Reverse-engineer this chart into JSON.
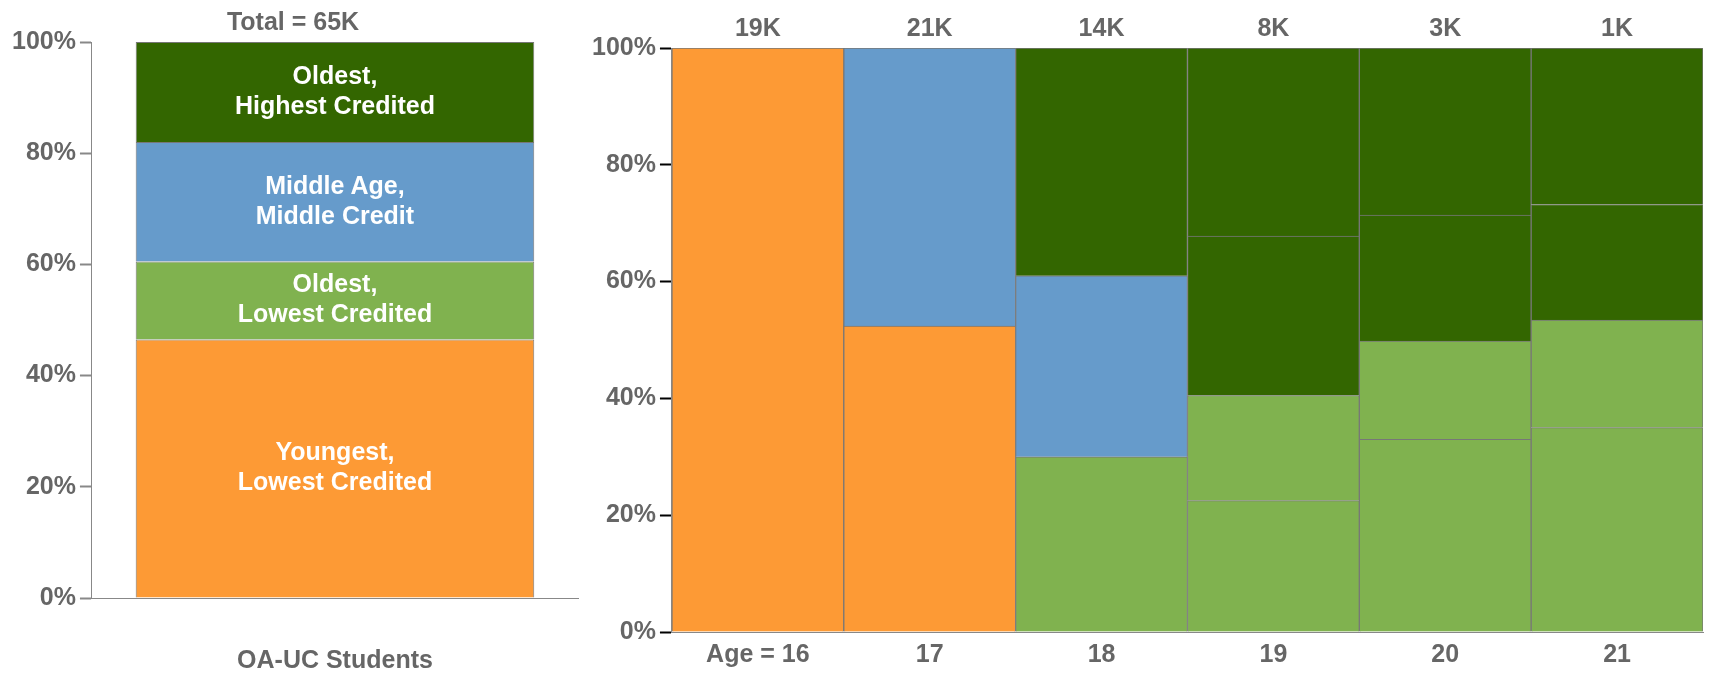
{
  "chart_data": [
    {
      "type": "bar",
      "title": "Total = 65K",
      "xlabel": "OA-UC Students",
      "categories": [
        null
      ],
      "stacked": true,
      "ylim": [
        0,
        100
      ],
      "yticks": [
        {
          "value": 0,
          "label": "0%"
        },
        {
          "value": 20,
          "label": "20%"
        },
        {
          "value": 40,
          "label": "40%"
        },
        {
          "value": 60,
          "label": "60%"
        },
        {
          "value": 80,
          "label": "80%"
        },
        {
          "value": 100,
          "label": "100%"
        }
      ],
      "grid": false,
      "legend": false,
      "series": [
        {
          "name": "Youngest, Lowest Credited",
          "color": "#fd9a35",
          "values": [
            46.5
          ]
        },
        {
          "name": "Oldest, Lowest Credited",
          "color": "#80b24f",
          "values": [
            14
          ]
        },
        {
          "name": "Middle Age, Middle Credit",
          "color": "#669bcb",
          "values": [
            21.5
          ]
        },
        {
          "name": "Oldest, Highest Credited",
          "color": "#336600",
          "values": [
            18
          ]
        }
      ]
    },
    {
      "type": "bar",
      "categories": [
        "Age = 16",
        "17",
        "18",
        "19",
        "20",
        "21"
      ],
      "stacked": true,
      "ylim": [
        0,
        100
      ],
      "yticks": [
        {
          "value": 0,
          "label": "0%"
        },
        {
          "value": 20,
          "label": "20%"
        },
        {
          "value": 40,
          "label": "40%"
        },
        {
          "value": 60,
          "label": "60%"
        },
        {
          "value": 80,
          "label": "80%"
        },
        {
          "value": 100,
          "label": "100%"
        }
      ],
      "grid": false,
      "legend": false,
      "annotations": [
        {
          "text": "19K",
          "x": "Age = 16",
          "y": 100
        },
        {
          "text": "21K",
          "x": "17",
          "y": 100
        },
        {
          "text": "14K",
          "x": "18",
          "y": 100
        },
        {
          "text": "8K",
          "x": "19",
          "y": 100
        },
        {
          "text": "3K",
          "x": "20",
          "y": 100
        },
        {
          "text": "1K",
          "x": "21",
          "y": 100
        }
      ],
      "series": [
        {
          "color": "#fd9a35",
          "values": [
            100,
            52.4,
            null,
            null,
            null,
            null
          ]
        },
        {
          "color": "#80b24f",
          "values": [
            null,
            null,
            30,
            22.5,
            33,
            35
          ]
        },
        {
          "color": "#80b24f",
          "values": [
            null,
            null,
            null,
            18,
            16.8,
            18.4
          ]
        },
        {
          "color": "#669bcb",
          "values": [
            null,
            47.6,
            31,
            null,
            null,
            null
          ]
        },
        {
          "color": "#336600",
          "values": [
            null,
            null,
            39,
            27.3,
            21.6,
            19.8
          ]
        },
        {
          "color": "#336600",
          "values": [
            null,
            null,
            null,
            32.2,
            28.6,
            26.8
          ]
        }
      ]
    }
  ]
}
